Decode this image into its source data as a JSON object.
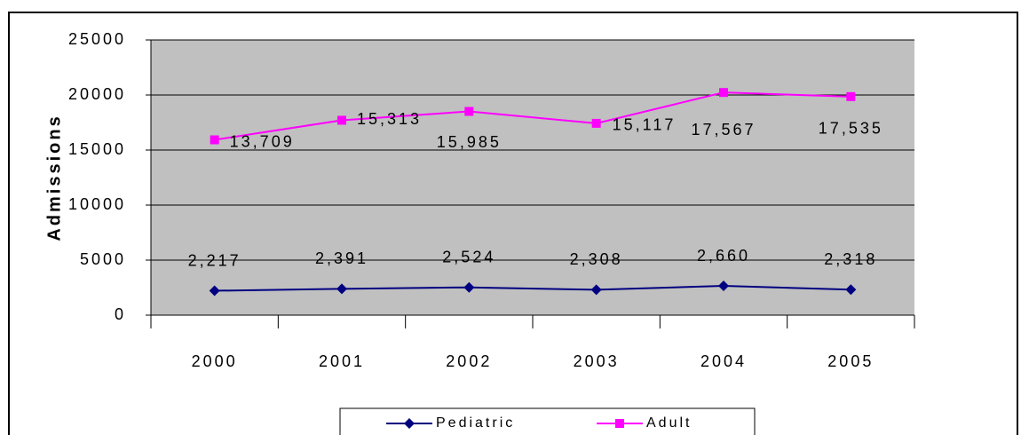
{
  "chart_data": {
    "type": "line",
    "stacked": true,
    "y_label": "Admissions",
    "categories": [
      "2000",
      "2001",
      "2002",
      "2003",
      "2004",
      "2005"
    ],
    "series": [
      {
        "name": "Pediatric",
        "color": "#000080",
        "marker": "diamond",
        "values": [
          2217,
          2391,
          2524,
          2308,
          2660,
          2318
        ],
        "value_labels": [
          "2,217",
          "2,391",
          "2,524",
          "2,308",
          "2,660",
          "2,318"
        ]
      },
      {
        "name": "Adult",
        "color": "#ff00ff",
        "marker": "square",
        "values": [
          13709,
          15313,
          15985,
          15117,
          17567,
          17535
        ],
        "value_labels": [
          "13,709",
          "15,313",
          "15,985",
          "15,117",
          "17,567",
          "17,535"
        ]
      }
    ],
    "ylim": [
      0,
      25000
    ],
    "yticks": [
      0,
      5000,
      10000,
      15000,
      20000,
      25000
    ],
    "grid": true,
    "plot_background": "#c0c0c0",
    "legend": "bottom"
  }
}
